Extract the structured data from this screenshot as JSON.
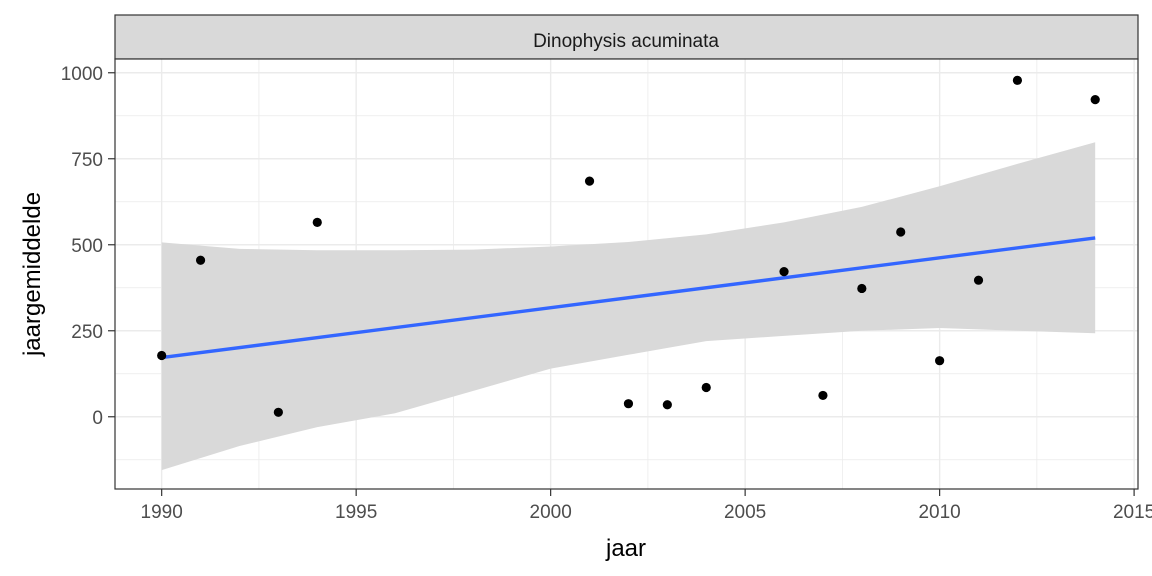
{
  "chart_data": {
    "type": "scatter",
    "facet_title": "Dinophysis acuminata",
    "xlabel": "jaar",
    "ylabel": "jaargemiddelde",
    "xlim": [
      1988.8,
      2015.1
    ],
    "ylim": [
      -210,
      1040
    ],
    "x_ticks": [
      1990,
      1995,
      2000,
      2005,
      2010,
      2015
    ],
    "x_tick_labels": [
      "1990",
      "1995",
      "2000",
      "2005",
      "2010",
      "2015"
    ],
    "y_ticks": [
      0,
      250,
      500,
      750,
      1000
    ],
    "y_tick_labels": [
      "0",
      "250",
      "500",
      "750",
      "1000"
    ],
    "grid": true,
    "points": [
      {
        "x": 1990,
        "y": 178
      },
      {
        "x": 1991,
        "y": 455
      },
      {
        "x": 1993,
        "y": 13
      },
      {
        "x": 1994,
        "y": 565
      },
      {
        "x": 2001,
        "y": 685
      },
      {
        "x": 2002,
        "y": 38
      },
      {
        "x": 2003,
        "y": 35
      },
      {
        "x": 2004,
        "y": 85
      },
      {
        "x": 2006,
        "y": 422
      },
      {
        "x": 2007,
        "y": 62
      },
      {
        "x": 2008,
        "y": 373
      },
      {
        "x": 2009,
        "y": 537
      },
      {
        "x": 2010,
        "y": 163
      },
      {
        "x": 2011,
        "y": 397
      },
      {
        "x": 2012,
        "y": 978
      },
      {
        "x": 2014,
        "y": 922
      }
    ],
    "trend": {
      "method": "lm",
      "x": [
        1990,
        2014
      ],
      "y": [
        172,
        520
      ],
      "ci_x": [
        1990,
        1992,
        1994,
        1996,
        1998,
        2000,
        2002,
        2004,
        2006,
        2008,
        2010,
        2012,
        2014
      ],
      "ci_upper": [
        507,
        488,
        484,
        484,
        486,
        495,
        508,
        530,
        565,
        610,
        670,
        735,
        798
      ],
      "ci_lower": [
        -155,
        -85,
        -30,
        10,
        75,
        140,
        180,
        220,
        235,
        250,
        258,
        250,
        243
      ]
    },
    "colors": {
      "line": "#3366ff",
      "ribbon": "#d9d9d9",
      "points": "#000000",
      "panel_border": "#333333",
      "grid": "#ebebeb",
      "strip_bg": "#d9d9d9"
    }
  }
}
